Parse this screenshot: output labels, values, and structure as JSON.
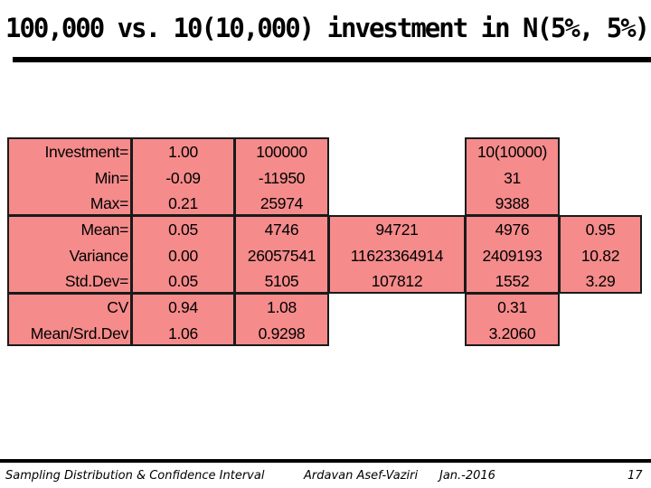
{
  "slide": {
    "title": "100,000 vs. 10(10,000) investment in N(5%, 5%)"
  },
  "table": {
    "labels": {
      "top": [
        "Investment=",
        "Min=",
        "Max="
      ],
      "mid": [
        "Mean=",
        "Variance",
        "Std.Dev="
      ],
      "bot": [
        "CV",
        "Mean/Srd.Dev"
      ]
    },
    "col_rate": {
      "top": [
        "1.00",
        "-0.09",
        "0.21"
      ],
      "mid": [
        "0.05",
        "0.00",
        "0.05"
      ],
      "bot": [
        "0.94",
        "1.06"
      ]
    },
    "col_single": {
      "top": [
        "100000",
        "-11950",
        "25974"
      ],
      "mid": [
        "4746",
        "26057541",
        "5105"
      ],
      "bot": [
        "1.08",
        "0.9298"
      ]
    },
    "col_portfolio_total": {
      "mid": [
        "94721",
        "11623364914",
        "107812"
      ]
    },
    "col_split": {
      "top": [
        "10(10000)",
        "31",
        "9388"
      ],
      "mid": [
        "4976",
        "2409193",
        "1552"
      ],
      "bot": [
        "0.31",
        "3.2060"
      ]
    },
    "col_ratio": {
      "mid": [
        "0.95",
        "10.82",
        "3.29"
      ]
    }
  },
  "footer": {
    "course": "Sampling Distribution & Confidence Interval",
    "author": "Ardavan Asef-Vaziri",
    "date": "Jan.-2016",
    "page": "17"
  }
}
